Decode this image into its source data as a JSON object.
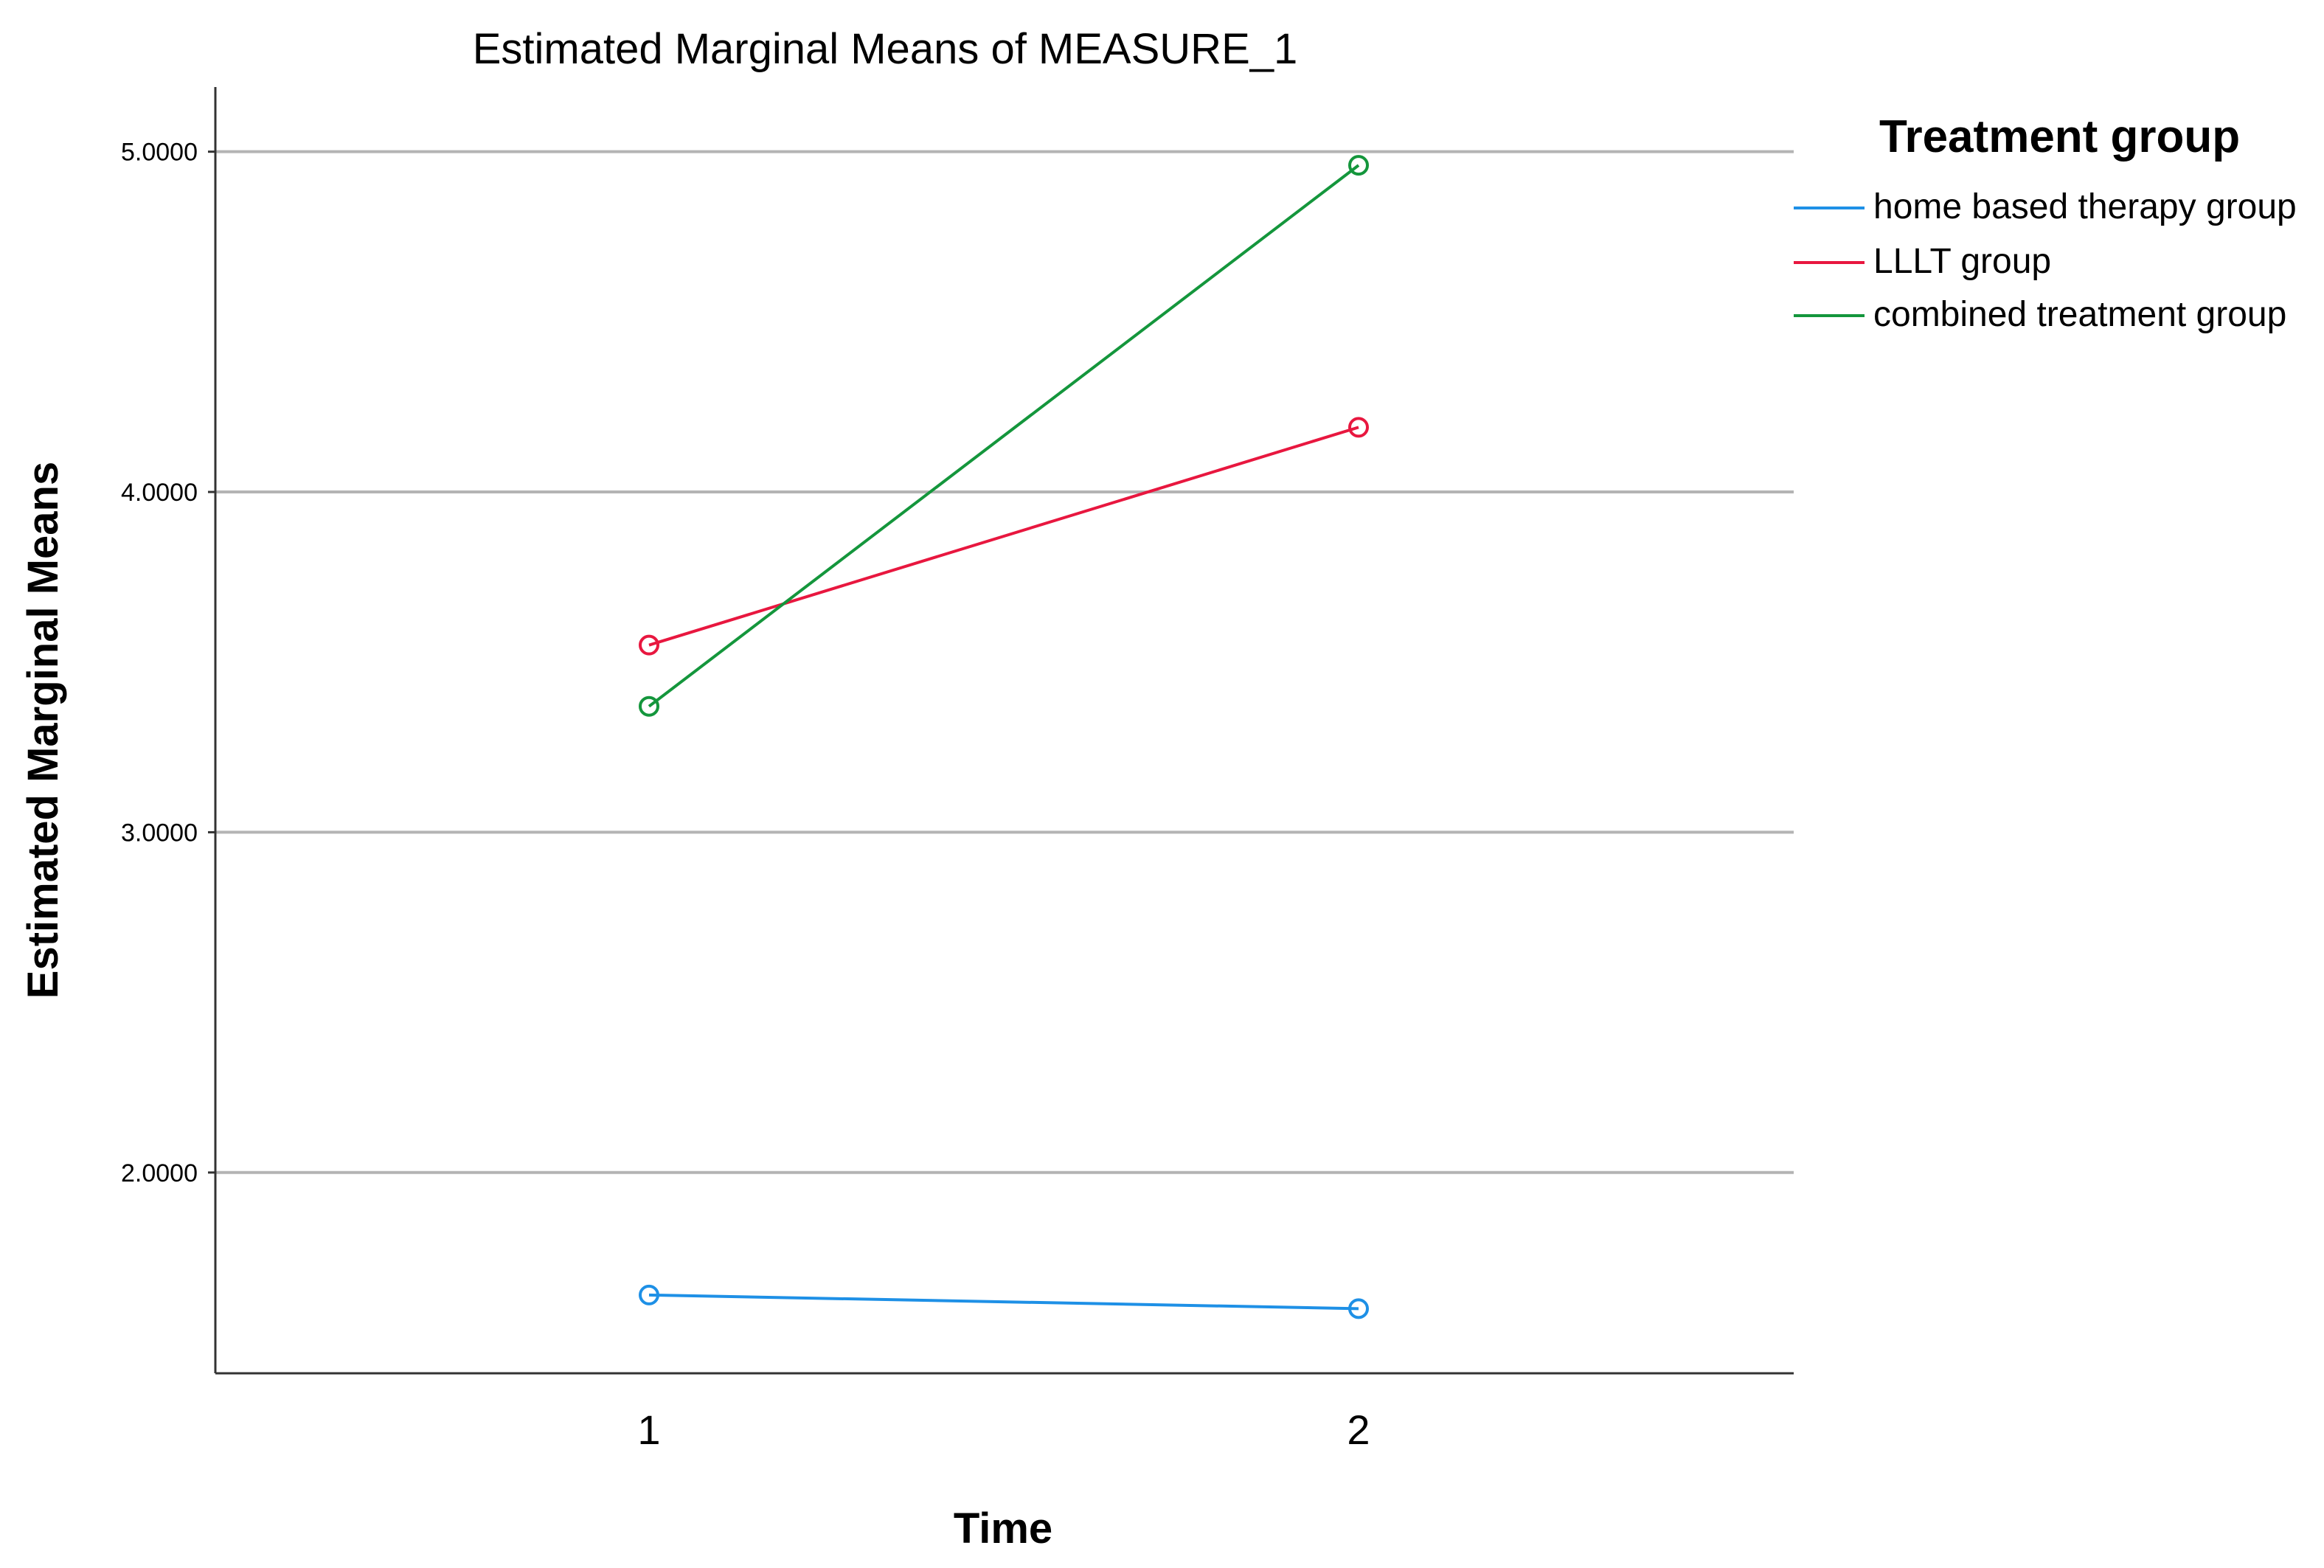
{
  "chart_data": {
    "type": "line",
    "title": "Estimated Marginal Means of MEASURE_1",
    "xlabel": "Time",
    "ylabel": "Estimated Marginal Means",
    "categories": [
      "1",
      "2"
    ],
    "y_ticks": [
      "2.0000",
      "3.0000",
      "4.0000",
      "5.0000"
    ],
    "ylim": [
      1.41,
      5.19
    ],
    "grid": "horizontal",
    "legend": {
      "title": "Treatment group",
      "position": "top-right"
    },
    "marker": "open-circle",
    "series": [
      {
        "name": "home based therapy group",
        "color": "#1e90e6",
        "values": [
          1.64,
          1.6
        ]
      },
      {
        "name": "LLLT group",
        "color": "#e8173f",
        "values": [
          3.55,
          4.19
        ]
      },
      {
        "name": "combined treatment group",
        "color": "#14963c",
        "values": [
          3.37,
          4.96
        ]
      }
    ]
  }
}
